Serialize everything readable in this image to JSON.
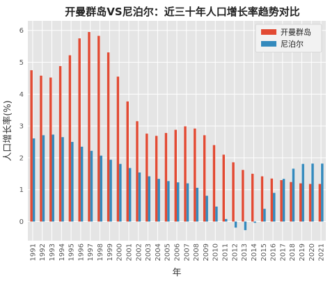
{
  "chart_data": {
    "type": "bar",
    "title": "开曼群岛VS尼泊尔：近三十年人口增长率趋势对比",
    "xlabel": "年",
    "ylabel": "人口增长率(%)",
    "ylim": [
      -0.6,
      6.3
    ],
    "yticks": [
      0,
      1,
      2,
      3,
      4,
      5,
      6
    ],
    "grid": true,
    "legend_position": "top-right",
    "categories": [
      "1991",
      "1992",
      "1993",
      "1994",
      "1995",
      "1996",
      "1997",
      "1998",
      "1999",
      "2000",
      "2001",
      "2002",
      "2003",
      "2004",
      "2005",
      "2006",
      "2007",
      "2008",
      "2009",
      "2010",
      "2011",
      "2012",
      "2013",
      "2014",
      "2015",
      "2016",
      "2017",
      "2018",
      "2019",
      "2020",
      "2021"
    ],
    "series": [
      {
        "name": "开曼群岛",
        "color": "#E24A33",
        "values": [
          4.75,
          4.58,
          4.52,
          4.88,
          5.22,
          5.75,
          5.95,
          5.83,
          5.31,
          4.55,
          3.77,
          3.15,
          2.76,
          2.69,
          2.78,
          2.88,
          2.99,
          2.92,
          2.71,
          2.4,
          2.1,
          1.86,
          1.62,
          1.5,
          1.42,
          1.35,
          1.3,
          1.24,
          1.2,
          1.18,
          1.18
        ]
      },
      {
        "name": "尼泊尔",
        "color": "#348ABD",
        "values": [
          2.61,
          2.71,
          2.73,
          2.65,
          2.5,
          2.35,
          2.22,
          2.07,
          1.94,
          1.81,
          1.68,
          1.54,
          1.42,
          1.34,
          1.27,
          1.23,
          1.2,
          1.06,
          0.81,
          0.47,
          0.08,
          -0.19,
          -0.27,
          -0.04,
          0.4,
          0.9,
          1.34,
          1.66,
          1.81,
          1.82,
          1.82
        ]
      }
    ]
  }
}
